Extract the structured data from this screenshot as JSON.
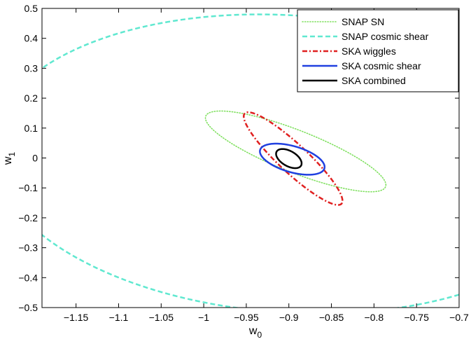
{
  "chart_data": {
    "type": "line",
    "title": "",
    "xlabel": "w",
    "xlabel_sub": "0",
    "ylabel": "w",
    "ylabel_sub": "1",
    "xlim": [
      -1.19,
      -0.7
    ],
    "ylim": [
      -0.5,
      0.5
    ],
    "xticks": [
      -1.15,
      -1.1,
      -1.05,
      -1,
      -0.95,
      -0.9,
      -0.85,
      -0.8,
      -0.75,
      -0.7
    ],
    "xtick_labels": [
      "−1.15",
      "−1.1",
      "−1.05",
      "−1",
      "−0.95",
      "−0.9",
      "−0.85",
      "−0.8",
      "−0.75",
      "−0.7"
    ],
    "yticks": [
      0.5,
      0.4,
      0.3,
      0.2,
      0.1,
      0,
      -0.1,
      -0.2,
      -0.3,
      -0.4,
      -0.5
    ],
    "ytick_labels": [
      "0.5",
      "0.4",
      "0.3",
      "0.2",
      "0.1",
      "0",
      "−0.1",
      "−0.2",
      "−0.3",
      "−0.4",
      "−0.5"
    ],
    "grid": false,
    "legend_position": "top-right",
    "series": [
      {
        "name": "SNAP SN",
        "color": "#80e060",
        "style": "dotted",
        "center": [
          -0.892,
          0.022
        ],
        "semi_axes": [
          0.106,
          0.135
        ],
        "corr": -0.83
      },
      {
        "name": "SNAP cosmic shear",
        "color": "#60e8d0",
        "style": "dashed",
        "center": [
          -0.9,
          -0.02
        ],
        "semi_axes": [
          0.35,
          0.5
        ],
        "corr": -0.1
      },
      {
        "name": "SKA wiggles",
        "color": "#e02020",
        "style": "dashdot",
        "center": [
          -0.895,
          -0.002
        ],
        "semi_axes": [
          0.058,
          0.155
        ],
        "corr": -0.91
      },
      {
        "name": "SKA cosmic shear",
        "color": "#2040e0",
        "style": "solid",
        "center": [
          -0.896,
          -0.004
        ],
        "semi_axes": [
          0.038,
          0.052
        ],
        "corr": -0.5
      },
      {
        "name": "SKA combined",
        "color": "#000000",
        "style": "solid",
        "center": [
          -0.9,
          -0.002
        ],
        "semi_axes": [
          0.015,
          0.032
        ],
        "corr": -0.5
      }
    ]
  }
}
